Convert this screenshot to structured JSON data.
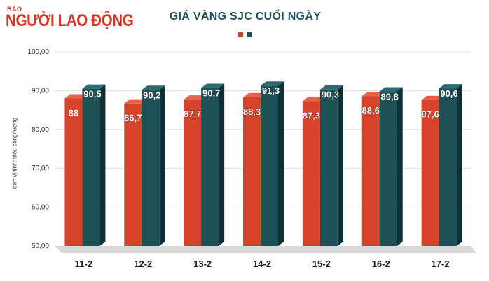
{
  "header": {
    "logo_small": "BÁO",
    "logo_main": "NGƯỜI LAO ĐỘNG"
  },
  "colors": {
    "series1": "#d7432a",
    "series1_top": "#e8624a",
    "series1_side": "#a8321f",
    "series2": "#1e5058",
    "series2_top": "#2d6a72",
    "series2_side": "#0f3036",
    "brand": "#d7342a",
    "title": "#1e4f5c"
  },
  "chart_data": {
    "type": "bar",
    "title": "GIÁ VÀNG SJC CUỐI NGÀY",
    "ylabel": "đơn vị tính: triệu đồng/lượng",
    "xlabel": "",
    "categories": [
      "11-2",
      "12-2",
      "13-2",
      "14-2",
      "15-2",
      "16-2",
      "17-2"
    ],
    "series": [
      {
        "values": [
          88,
          86.7,
          87.7,
          88.3,
          87.3,
          88.6,
          87.6
        ],
        "labels": [
          "88",
          "86,7",
          "87,7",
          "88,3",
          "87,3",
          "88,6",
          "87,6"
        ]
      },
      {
        "values": [
          90.5,
          90.2,
          90.7,
          91.3,
          90.3,
          89.8,
          90.6
        ],
        "labels": [
          "90,5",
          "90,2",
          "90,7",
          "91,3",
          "90,3",
          "89,8",
          "90,6"
        ]
      }
    ],
    "ylim": [
      50,
      100
    ],
    "yticks": [
      "50,00",
      "60,00",
      "70,00",
      "80,00",
      "90,00",
      "100,00"
    ],
    "grid": true,
    "legend": "top-center"
  }
}
